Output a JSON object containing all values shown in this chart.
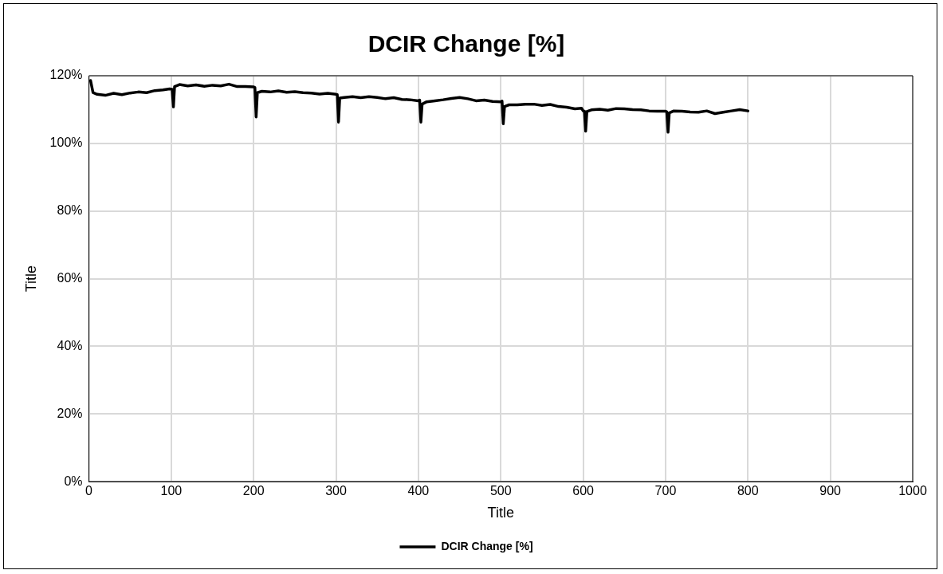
{
  "chart_data": {
    "type": "line",
    "title": "DCIR Change [%]",
    "xlabel": "Title",
    "ylabel": "Title",
    "xlim": [
      0,
      1000
    ],
    "xticks": [
      0,
      100,
      200,
      300,
      400,
      500,
      600,
      700,
      800,
      900,
      1000
    ],
    "ylim": [
      0,
      120
    ],
    "yticks": [
      {
        "value": 0,
        "label": "0%"
      },
      {
        "value": 20,
        "label": "20%"
      },
      {
        "value": 40,
        "label": "40%"
      },
      {
        "value": 60,
        "label": "60%"
      },
      {
        "value": 80,
        "label": "80%"
      },
      {
        "value": 100,
        "label": "100%"
      },
      {
        "value": 120,
        "label": "120%"
      }
    ],
    "grid": true,
    "legend": "bottom",
    "marker": "none",
    "line_style": "solid",
    "x": [
      2,
      5,
      10,
      20,
      30,
      40,
      50,
      60,
      70,
      80,
      90,
      98,
      101,
      102.6,
      104,
      110,
      120,
      130,
      140,
      150,
      160,
      170,
      180,
      190,
      200,
      201.5,
      203,
      204.5,
      210,
      220,
      230,
      240,
      250,
      260,
      270,
      280,
      290,
      300,
      301.5,
      303,
      304.5,
      310,
      320,
      330,
      340,
      350,
      360,
      370,
      380,
      390,
      400,
      401.5,
      403,
      404.5,
      410,
      420,
      430,
      440,
      450,
      460,
      470,
      480,
      490,
      500,
      501.5,
      503,
      504.5,
      510,
      520,
      530,
      540,
      550,
      560,
      570,
      580,
      590,
      598,
      600,
      601.5,
      603,
      604.5,
      610,
      620,
      630,
      640,
      650,
      660,
      670,
      680,
      690,
      700,
      701.5,
      703,
      704.5,
      710,
      720,
      730,
      740,
      750,
      760,
      770,
      780,
      790,
      800
    ],
    "series": [
      {
        "name": "DCIR Change [%]",
        "color": "#000000",
        "values": [
          118.6,
          115,
          114.5,
          114.2,
          114.8,
          114.4,
          114.9,
          115.2,
          115.0,
          115.6,
          115.8,
          116.1,
          116.0,
          110.8,
          116.8,
          117.4,
          117.0,
          117.3,
          116.9,
          117.2,
          117.0,
          117.5,
          116.8,
          116.8,
          116.7,
          116.5,
          107.8,
          115.0,
          115.4,
          115.2,
          115.5,
          115.1,
          115.3,
          115.0,
          114.9,
          114.6,
          114.8,
          114.5,
          114.4,
          106.3,
          113.4,
          113.6,
          113.8,
          113.5,
          113.8,
          113.6,
          113.2,
          113.5,
          113.0,
          112.9,
          112.6,
          112.8,
          106.3,
          111.6,
          112.3,
          112.6,
          112.9,
          113.3,
          113.6,
          113.2,
          112.6,
          112.8,
          112.4,
          112.3,
          112.5,
          105.8,
          110.9,
          111.4,
          111.4,
          111.6,
          111.6,
          111.2,
          111.5,
          110.9,
          110.7,
          110.2,
          110.4,
          109.6,
          109.5,
          103.6,
          109.4,
          109.9,
          110.1,
          109.8,
          110.3,
          110.2,
          110.0,
          109.9,
          109.6,
          109.5,
          109.5,
          109.3,
          103.3,
          109.0,
          109.6,
          109.5,
          109.3,
          109.2,
          109.6,
          108.8,
          109.2,
          109.6,
          110.0,
          109.6
        ]
      }
    ]
  }
}
